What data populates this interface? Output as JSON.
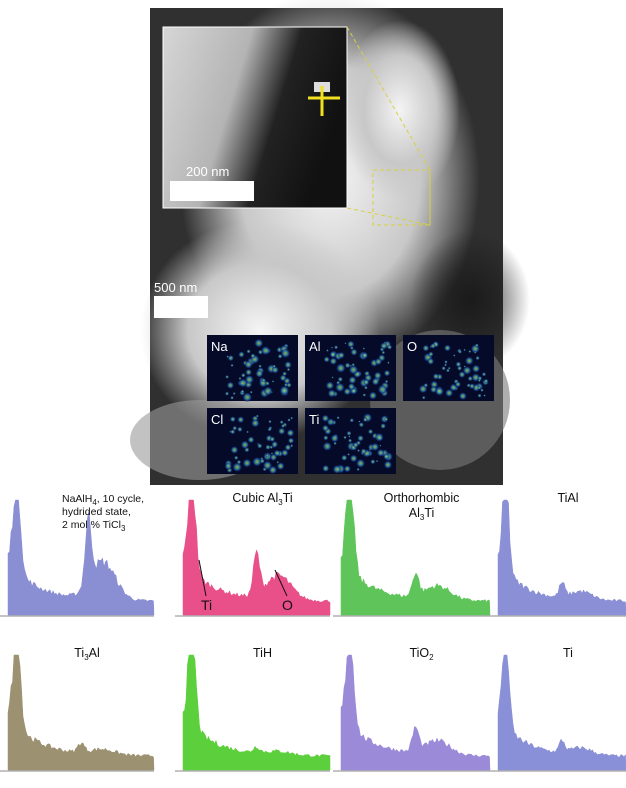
{
  "micrograph": {
    "inset_scale": "200 nm",
    "main_scale": "500 nm",
    "maps": [
      "Na",
      "Al",
      "O",
      "Cl",
      "Ti"
    ]
  },
  "spectra": [
    {
      "label": [
        {
          "t": "NaAlH"
        },
        {
          "s": "4"
        },
        {
          "t": ", 10 cycle,"
        },
        {
          "br": true
        },
        {
          "t": "hydrided state,"
        },
        {
          "br": true
        },
        {
          "t": "2 mol % TiCl"
        },
        {
          "s": "3"
        }
      ]
    },
    {
      "label": [
        {
          "t": "Cubic Al"
        },
        {
          "s": "3"
        },
        {
          "t": "Ti"
        }
      ],
      "annotations": [
        "Ti",
        "O"
      ]
    },
    {
      "label": [
        {
          "t": "Orthorhombic"
        },
        {
          "br": true
        },
        {
          "t": "Al"
        },
        {
          "s": "3"
        },
        {
          "t": "Ti"
        }
      ]
    },
    {
      "label": [
        {
          "t": "TiAl"
        }
      ]
    },
    {
      "label": [
        {
          "t": "Ti"
        },
        {
          "s": "3"
        },
        {
          "t": "Al"
        }
      ]
    },
    {
      "label": [
        {
          "t": "TiH"
        }
      ]
    },
    {
      "label": [
        {
          "t": "TiO"
        },
        {
          "s": "2"
        }
      ]
    },
    {
      "label": [
        {
          "t": "Ti"
        }
      ]
    }
  ]
}
